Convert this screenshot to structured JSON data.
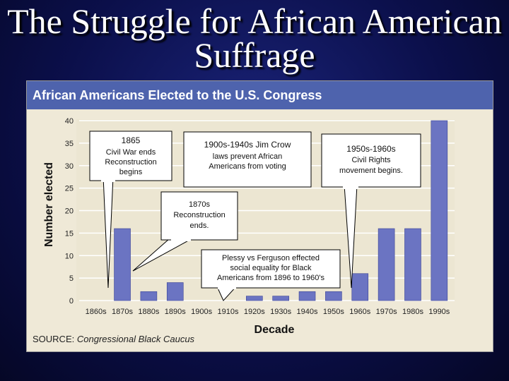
{
  "slide_title": "The Struggle for African American Suffrage",
  "panel": {
    "header": "African Americans Elected to the U.S. Congress",
    "source_label": "SOURCE:",
    "source_name": "Congressional Black Caucus"
  },
  "callouts": {
    "c1865": {
      "title": "1865",
      "lines": [
        "Civil War ends",
        "Reconstruction",
        "begins"
      ]
    },
    "jimcrow": {
      "title": "1900s-1940s Jim Crow",
      "lines": [
        "laws prevent African",
        "Americans from voting"
      ]
    },
    "civilrights": {
      "title": "1950s-1960s",
      "lines": [
        "Civil Rights",
        "movement begins."
      ]
    },
    "reconend": {
      "title": "1870s",
      "lines": [
        "Reconstruction",
        "ends."
      ]
    },
    "plessy": {
      "title": "Plessy vs Ferguson effected",
      "lines": [
        "social equality for Black",
        "Americans from 1896 to 1960's"
      ]
    }
  },
  "colors": {
    "bar": "#6b74c2",
    "bar_edge": "#3b4496",
    "header": "#4e63ad",
    "panel": "#efe9d7",
    "plot": "#ece6d2"
  },
  "chart_data": {
    "type": "bar",
    "categories": [
      "1860s",
      "1870s",
      "1880s",
      "1890s",
      "1900s",
      "1910s",
      "1920s",
      "1930s",
      "1940s",
      "1950s",
      "1960s",
      "1970s",
      "1980s",
      "1990s"
    ],
    "values": [
      0,
      16,
      2,
      4,
      0,
      0,
      1,
      1,
      2,
      2,
      6,
      16,
      16,
      40
    ],
    "xlabel": "Decade",
    "ylabel": "Number elected",
    "ylim": [
      0,
      40
    ],
    "yticks": [
      0,
      5,
      10,
      15,
      20,
      25,
      30,
      35,
      40
    ],
    "grid": true
  }
}
